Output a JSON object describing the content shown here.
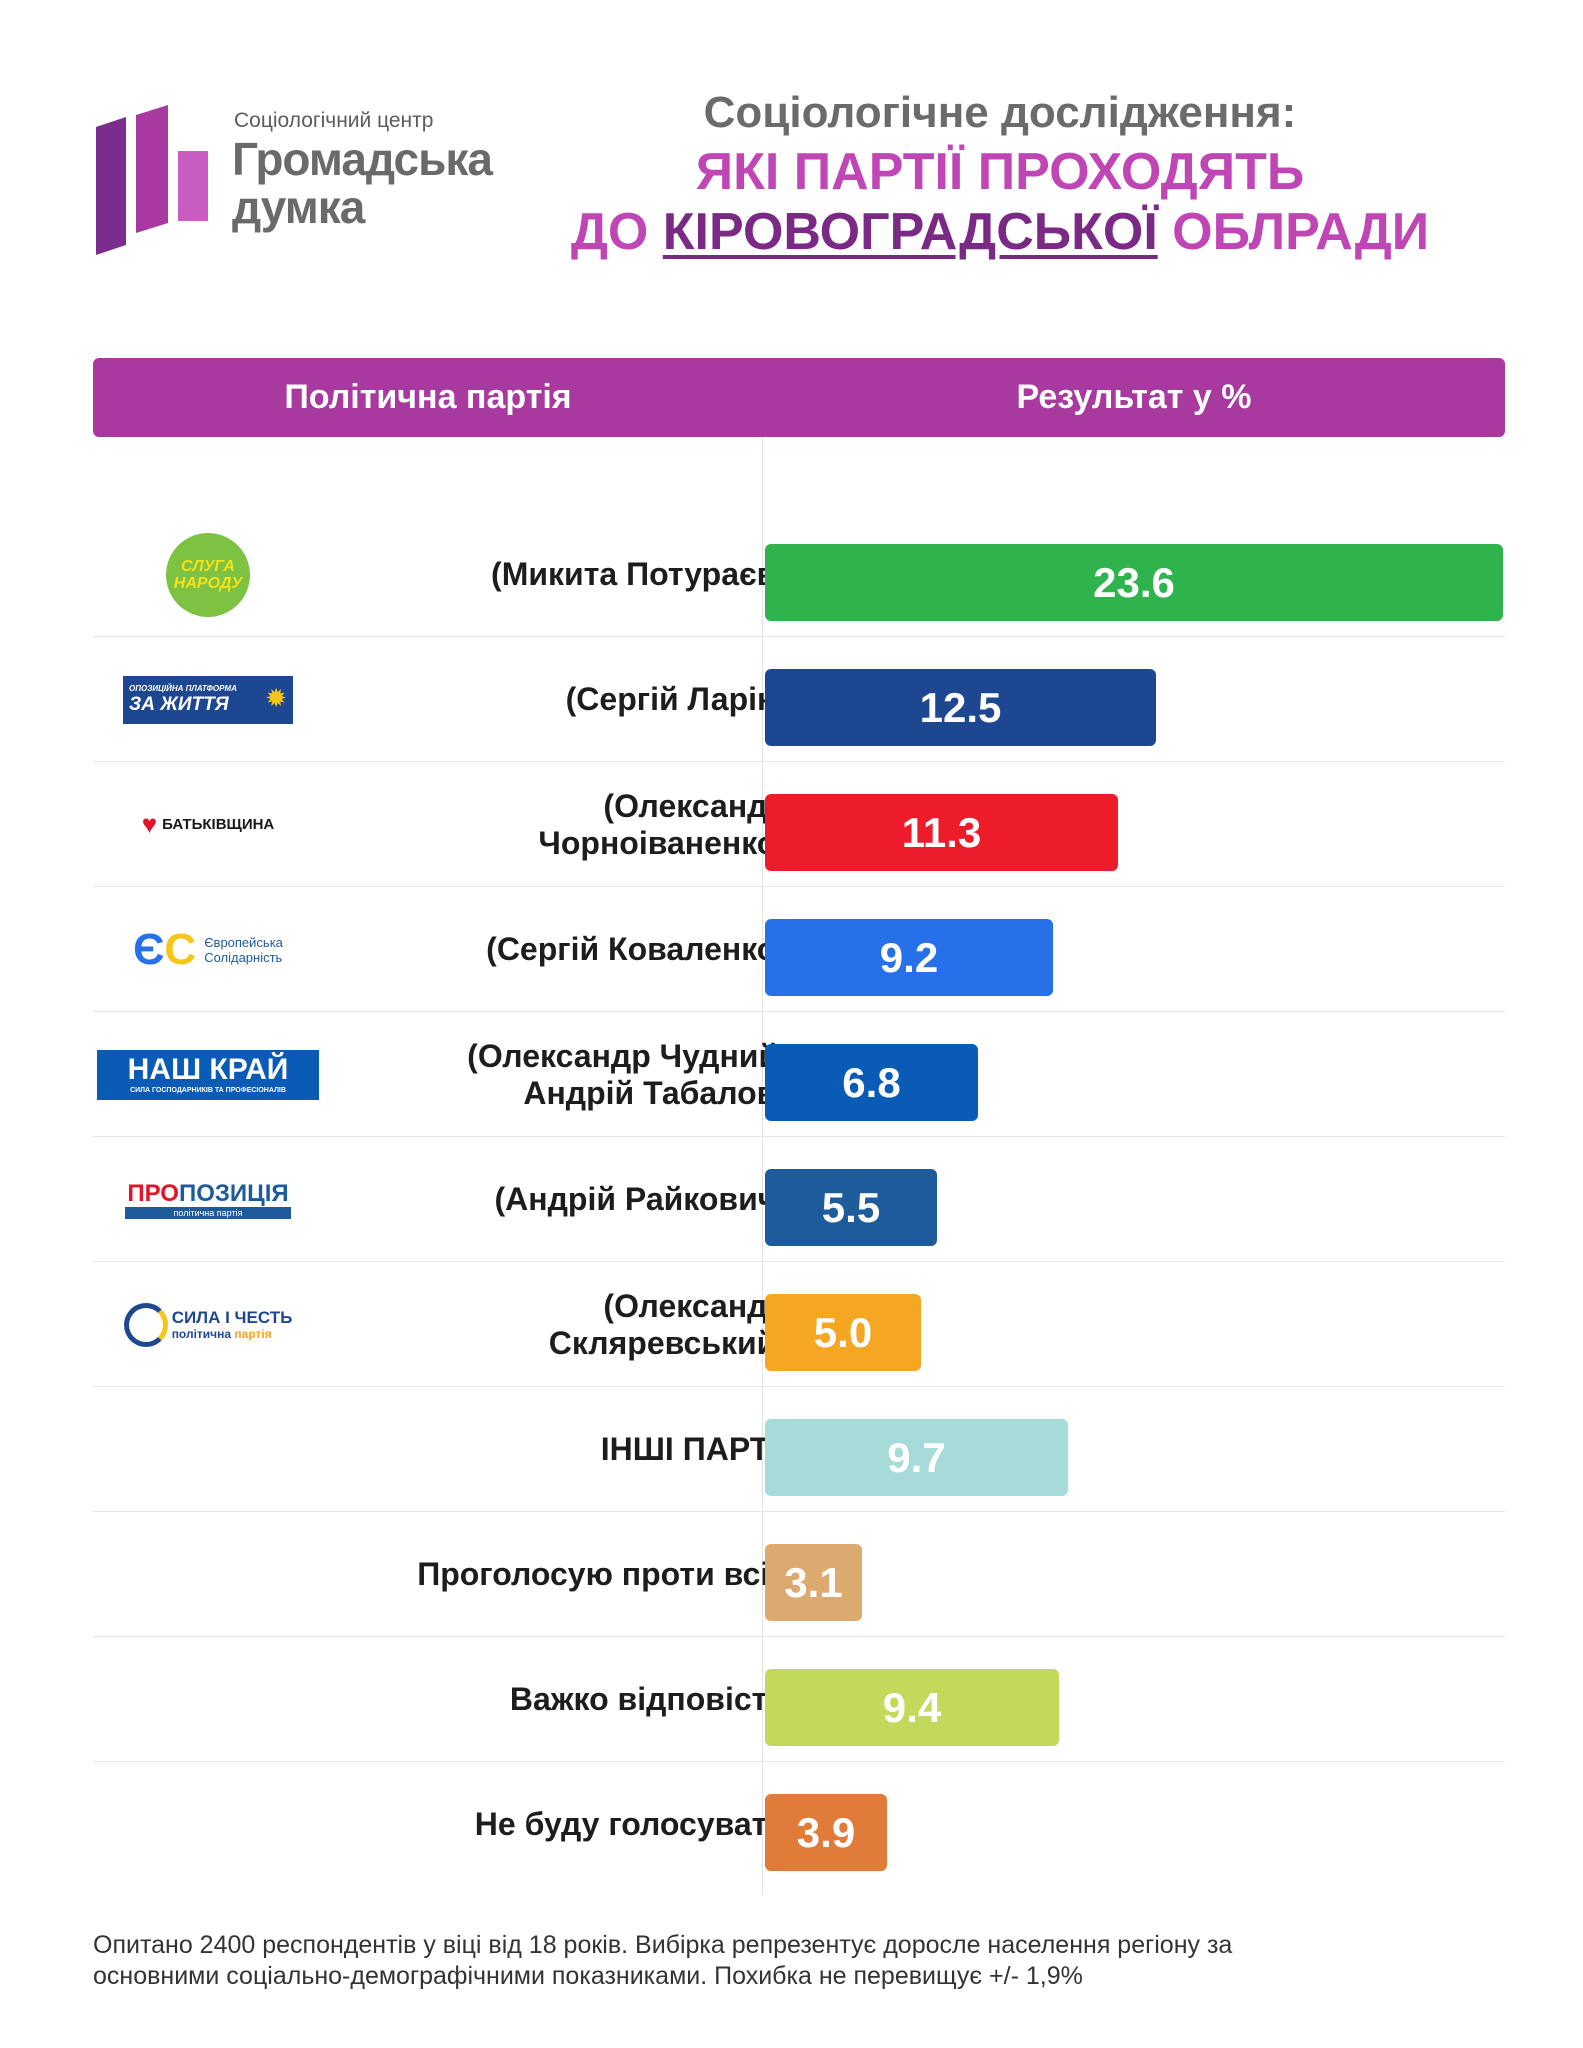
{
  "brand": {
    "subtitle": "Соціологічний центр",
    "name_line1": "Громадська",
    "name_line2": "думка",
    "colors": [
      "#7b2d8e",
      "#a7399f",
      "#c85cc0"
    ]
  },
  "title": {
    "line1": "Соціологічне дослідження:",
    "line2": "ЯКІ ПАРТІЇ ПРОХОДЯТЬ",
    "line3_prefix": "ДО ",
    "line3_highlight": "КІРОВОГРАДСЬКОЇ",
    "line3_suffix": " ОБЛРАДИ"
  },
  "header": {
    "party_col": "Політична партія",
    "result_col": "Результат у %",
    "color": "#a7399f"
  },
  "chart_data": {
    "type": "bar",
    "orientation": "horizontal",
    "categories": [
      "(Микита Потураєв)",
      "(Сергій Ларін)",
      "(Олександр Чорноіваненко)",
      "(Сергій Коваленко)",
      "(Олександр Чудний, Андрій Табалов)",
      "(Андрій Райкович)",
      "(Олександр Скляревський)",
      "ІНШІ ПАРТІЇ",
      "Проголосую проти всіх",
      "Важко відповісти",
      "Не буду голосувати"
    ],
    "values": [
      23.6,
      12.5,
      11.3,
      9.2,
      6.8,
      5.5,
      5.0,
      9.7,
      3.1,
      9.4,
      3.9
    ],
    "value_labels": [
      "23.6",
      "12.5",
      "11.3",
      "9.2",
      "6.8",
      "5.5",
      "5.0",
      "9.7",
      "3.1",
      "9.4",
      "3.9"
    ],
    "colors": [
      "#2fb34c",
      "#1d4891",
      "#ed1c2b",
      "#2670ea",
      "#0a5bb5",
      "#1e5b9b",
      "#f5a623",
      "#a7dbd8",
      "#dcaa6e",
      "#c3d95b",
      "#e07b39"
    ],
    "xlim": [
      0,
      23.6
    ]
  },
  "rows": [
    {
      "label_lines": [
        "(Микита Потураєв)"
      ],
      "logo": {
        "icon": "sluha-narodu-logo",
        "text1": "СЛУГА",
        "text2": "НАРОДУ"
      }
    },
    {
      "label_lines": [
        "(Сергій Ларін)"
      ],
      "logo": {
        "icon": "opzzh-logo",
        "text1": "ОПОЗИЦІЙНА ПЛАТФОРМА",
        "text2": "ЗА ЖИТТЯ"
      }
    },
    {
      "label_lines": [
        "(Олександр",
        "Чорноіваненко)"
      ],
      "logo": {
        "icon": "batkivshchyna-logo",
        "text1": "БАТЬКІВЩИНА"
      }
    },
    {
      "label_lines": [
        "(Сергій Коваленко)"
      ],
      "logo": {
        "icon": "yevropeiska-solidarnist-logo",
        "text1": "Європейська",
        "text2": "Солідарність"
      }
    },
    {
      "label_lines": [
        "(Олександр Чудний,",
        "Андрій Табалов)"
      ],
      "logo": {
        "icon": "nash-krai-logo",
        "text1": "НАШ КРАЙ",
        "text2": "СИЛА ГОСПОДАРНИКІВ ТА ПРОФЕСІОНАЛІВ"
      }
    },
    {
      "label_lines": [
        "(Андрій Райкович)"
      ],
      "logo": {
        "icon": "propozytsiia-logo",
        "text1": "ПРО",
        "text2": "ПОЗИЦІЯ",
        "text3": "політична партія"
      }
    },
    {
      "label_lines": [
        "(Олександр",
        "Скляревський)"
      ],
      "logo": {
        "icon": "syla-i-chest-logo",
        "text1": "СИЛА І ЧЕСТЬ",
        "text2": "політична",
        "text3": "партія"
      }
    },
    {
      "label_lines": [
        "ІНШІ ПАРТІЇ"
      ]
    },
    {
      "label_lines": [
        "Проголосую проти всіх"
      ]
    },
    {
      "label_lines": [
        "Важко відповісти"
      ]
    },
    {
      "label_lines": [
        "Не буду голосувати"
      ]
    }
  ],
  "footer": {
    "line1": "Опитано 2400 респондентів у віці від 18 років. Вибірка репрезентує доросле населення регіону за",
    "line2": "основними соціально-демографічними показниками. Похибка не перевищує +/- 1,9%"
  }
}
